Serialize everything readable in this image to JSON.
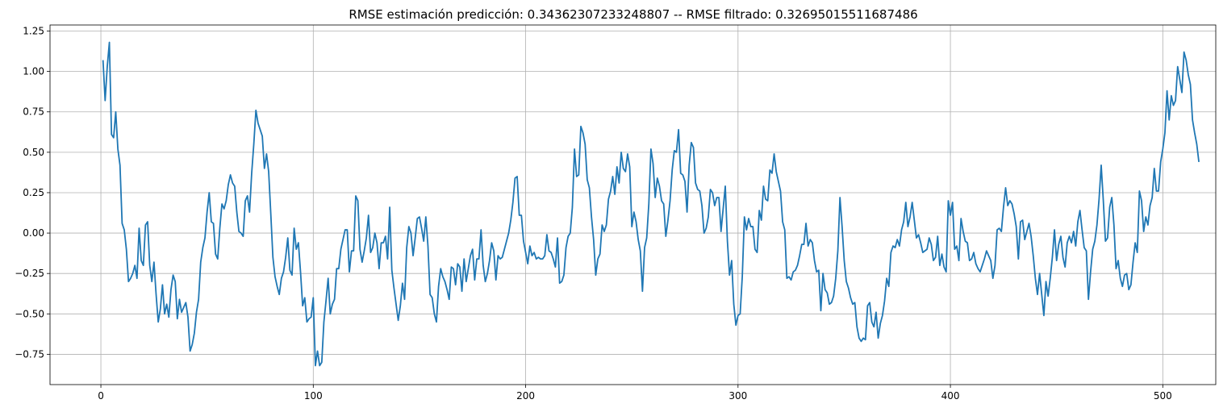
{
  "chart_data": {
    "type": "line",
    "title": "RMSE estimación predicción: 0.34362307233248807 -- RMSE filtrado: 0.32695015511687486",
    "xlabel": "",
    "ylabel": "",
    "xlim": [
      -23.95,
      524.95
    ],
    "ylim": [
      -0.9375,
      1.2875
    ],
    "xticks": [
      0,
      100,
      200,
      300,
      400,
      500
    ],
    "xtick_labels": [
      "0",
      "100",
      "200",
      "300",
      "400",
      "500"
    ],
    "yticks": [
      -0.75,
      -0.5,
      -0.25,
      0.0,
      0.25,
      0.5,
      0.75,
      1.0,
      1.25
    ],
    "ytick_labels": [
      "−0.75",
      "−0.50",
      "−0.25",
      "0.00",
      "0.25",
      "0.50",
      "0.75",
      "1.00",
      "1.25"
    ],
    "grid": true,
    "line_color": "#1f77b4",
    "series": [
      {
        "x_start": 1,
        "x_step": 1,
        "values": [
          1.07,
          0.82,
          1.03,
          1.18,
          0.61,
          0.59,
          0.75,
          0.52,
          0.42,
          0.06,
          0.02,
          -0.1,
          -0.3,
          -0.28,
          -0.25,
          -0.2,
          -0.28,
          0.03,
          -0.17,
          -0.2,
          0.05,
          0.07,
          -0.2,
          -0.3,
          -0.18,
          -0.38,
          -0.55,
          -0.47,
          -0.32,
          -0.5,
          -0.44,
          -0.52,
          -0.35,
          -0.26,
          -0.3,
          -0.53,
          -0.41,
          -0.49,
          -0.46,
          -0.43,
          -0.52,
          -0.73,
          -0.69,
          -0.62,
          -0.49,
          -0.41,
          -0.18,
          -0.09,
          -0.03,
          0.13,
          0.25,
          0.07,
          0.06,
          -0.13,
          -0.16,
          0.03,
          0.18,
          0.15,
          0.2,
          0.3,
          0.36,
          0.31,
          0.29,
          0.13,
          0.01,
          0.0,
          -0.02,
          0.2,
          0.23,
          0.13,
          0.37,
          0.55,
          0.76,
          0.68,
          0.64,
          0.6,
          0.4,
          0.49,
          0.38,
          0.12,
          -0.15,
          -0.27,
          -0.33,
          -0.38,
          -0.28,
          -0.24,
          -0.15,
          -0.03,
          -0.23,
          -0.26,
          0.03,
          -0.1,
          -0.06,
          -0.24,
          -0.45,
          -0.4,
          -0.55,
          -0.53,
          -0.52,
          -0.4,
          -0.82,
          -0.73,
          -0.82,
          -0.8,
          -0.55,
          -0.42,
          -0.28,
          -0.5,
          -0.44,
          -0.41,
          -0.22,
          -0.22,
          -0.1,
          -0.04,
          0.02,
          0.02,
          -0.24,
          -0.11,
          -0.11,
          0.23,
          0.2,
          -0.1,
          -0.18,
          -0.11,
          -0.03,
          0.11,
          -0.12,
          -0.09,
          0.0,
          -0.06,
          -0.22,
          -0.06,
          -0.06,
          -0.02,
          -0.16,
          0.16,
          -0.23,
          -0.34,
          -0.44,
          -0.54,
          -0.45,
          -0.31,
          -0.41,
          -0.09,
          0.04,
          0.0,
          -0.14,
          -0.03,
          0.09,
          0.1,
          0.03,
          -0.05,
          0.1,
          -0.08,
          -0.38,
          -0.4,
          -0.5,
          -0.55,
          -0.33,
          -0.22,
          -0.27,
          -0.3,
          -0.35,
          -0.41,
          -0.21,
          -0.22,
          -0.32,
          -0.19,
          -0.21,
          -0.36,
          -0.16,
          -0.3,
          -0.22,
          -0.14,
          -0.1,
          -0.29,
          -0.16,
          -0.16,
          0.02,
          -0.2,
          -0.3,
          -0.25,
          -0.17,
          -0.06,
          -0.11,
          -0.29,
          -0.14,
          -0.16,
          -0.15,
          -0.1,
          -0.05,
          0.0,
          0.08,
          0.19,
          0.34,
          0.35,
          0.11,
          0.11,
          -0.05,
          -0.12,
          -0.19,
          -0.08,
          -0.14,
          -0.12,
          -0.16,
          -0.15,
          -0.16,
          -0.16,
          -0.14,
          -0.01,
          -0.11,
          -0.12,
          -0.16,
          -0.21,
          -0.03,
          -0.31,
          -0.3,
          -0.26,
          -0.09,
          -0.02,
          0.0,
          0.16,
          0.52,
          0.35,
          0.36,
          0.66,
          0.62,
          0.55,
          0.33,
          0.28,
          0.1,
          -0.04,
          -0.26,
          -0.16,
          -0.13,
          0.05,
          0.01,
          0.05,
          0.21,
          0.26,
          0.35,
          0.24,
          0.41,
          0.31,
          0.5,
          0.4,
          0.38,
          0.49,
          0.41,
          0.04,
          0.13,
          0.07,
          -0.04,
          -0.11,
          -0.36,
          -0.09,
          -0.03,
          0.18,
          0.52,
          0.43,
          0.22,
          0.34,
          0.29,
          0.2,
          0.18,
          -0.02,
          0.08,
          0.2,
          0.39,
          0.51,
          0.5,
          0.64,
          0.37,
          0.36,
          0.32,
          0.13,
          0.42,
          0.56,
          0.53,
          0.31,
          0.27,
          0.26,
          0.17,
          0.0,
          0.03,
          0.1,
          0.27,
          0.25,
          0.17,
          0.22,
          0.22,
          0.01,
          0.15,
          0.29,
          -0.05,
          -0.26,
          -0.17,
          -0.44,
          -0.57,
          -0.51,
          -0.5,
          -0.27,
          0.1,
          0.02,
          0.09,
          0.04,
          0.04,
          -0.1,
          -0.12,
          0.14,
          0.08,
          0.29,
          0.21,
          0.2,
          0.39,
          0.37,
          0.49,
          0.38,
          0.32,
          0.26,
          0.07,
          0.02,
          -0.28,
          -0.27,
          -0.29,
          -0.24,
          -0.23,
          -0.2,
          -0.14,
          -0.07,
          -0.07,
          0.06,
          -0.08,
          -0.04,
          -0.06,
          -0.17,
          -0.24,
          -0.23,
          -0.48,
          -0.25,
          -0.35,
          -0.37,
          -0.44,
          -0.43,
          -0.39,
          -0.28,
          -0.11,
          0.22,
          0.04,
          -0.17,
          -0.3,
          -0.34,
          -0.4,
          -0.44,
          -0.43,
          -0.58,
          -0.65,
          -0.67,
          -0.65,
          -0.66,
          -0.45,
          -0.43,
          -0.55,
          -0.58,
          -0.49,
          -0.65,
          -0.56,
          -0.51,
          -0.42,
          -0.28,
          -0.33,
          -0.12,
          -0.08,
          -0.09,
          -0.04,
          -0.08,
          0.02,
          0.07,
          0.19,
          0.04,
          0.1,
          0.19,
          0.08,
          -0.03,
          -0.01,
          -0.06,
          -0.12,
          -0.11,
          -0.1,
          -0.03,
          -0.07,
          -0.17,
          -0.15,
          -0.02,
          -0.2,
          -0.13,
          -0.21,
          -0.24,
          0.2,
          0.11,
          0.19,
          -0.1,
          -0.08,
          -0.17,
          0.09,
          0.01,
          -0.05,
          -0.06,
          -0.17,
          -0.16,
          -0.12,
          -0.19,
          -0.22,
          -0.24,
          -0.2,
          -0.16,
          -0.11,
          -0.14,
          -0.17,
          -0.28,
          -0.2,
          0.02,
          0.03,
          0.01,
          0.16,
          0.28,
          0.17,
          0.2,
          0.18,
          0.12,
          0.04,
          -0.16,
          0.07,
          0.08,
          -0.04,
          0.01,
          0.06,
          -0.02,
          -0.14,
          -0.28,
          -0.38,
          -0.25,
          -0.38,
          -0.51,
          -0.3,
          -0.39,
          -0.28,
          -0.15,
          0.02,
          -0.17,
          -0.07,
          -0.02,
          -0.15,
          -0.21,
          -0.06,
          -0.02,
          -0.06,
          0.01,
          -0.08,
          0.07,
          0.14,
          0.02,
          -0.09,
          -0.11,
          -0.41,
          -0.24,
          -0.1,
          -0.05,
          0.05,
          0.21,
          0.42,
          0.2,
          -0.05,
          -0.03,
          0.16,
          0.22,
          0.05,
          -0.22,
          -0.17,
          -0.28,
          -0.33,
          -0.26,
          -0.25,
          -0.35,
          -0.32,
          -0.18,
          -0.06,
          -0.12,
          0.26,
          0.2,
          0.01,
          0.1,
          0.05,
          0.17,
          0.22,
          0.4,
          0.26,
          0.26,
          0.44,
          0.52,
          0.62,
          0.88,
          0.7,
          0.85,
          0.79,
          0.82,
          1.03,
          0.95,
          0.87,
          1.12,
          1.07,
          0.98,
          0.92,
          0.7,
          0.62,
          0.55,
          0.44
        ]
      }
    ]
  }
}
